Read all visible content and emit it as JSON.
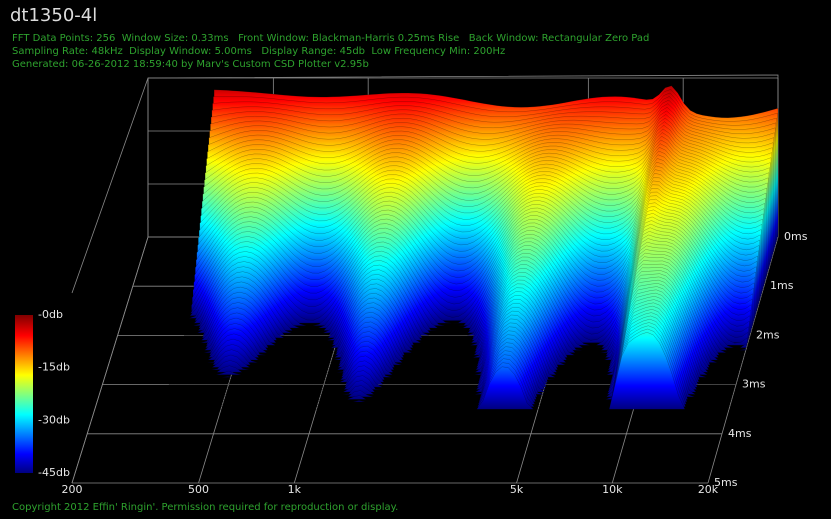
{
  "chart_data": {
    "type": "waterfall",
    "title": "dt1350-4l",
    "subtitle": [
      "FFT Data Points: 256  Window Size: 0.33ms   Front Window: Blackman-Harris 0.25ms Rise   Back Window: Rectangular Zero Pad",
      "Sampling Rate: 48kHz  Display Window: 5.00ms   Display Range: 45db  Low Frequency Min: 200Hz",
      "Generated: 06-26-2012 18:59:40 by Marv's Custom CSD Plotter v2.95b"
    ],
    "xlim": [
      200,
      20000
    ],
    "log_x": true,
    "xticks": [
      200,
      500,
      {
        "value": 1000,
        "label": "1k"
      },
      {
        "value": 5000,
        "label": "5k"
      },
      {
        "value": 10000,
        "label": "10k"
      },
      {
        "value": 20000,
        "label": "20k"
      }
    ],
    "ylim": [
      0,
      5
    ],
    "yticks": [
      {
        "value": 0,
        "label": "0ms"
      },
      {
        "value": 1,
        "label": "1ms"
      },
      {
        "value": 2,
        "label": "2ms"
      },
      {
        "value": 3,
        "label": "3ms"
      },
      {
        "value": 4,
        "label": "4ms"
      },
      {
        "value": 5,
        "label": "5ms"
      }
    ],
    "zlim": [
      -45,
      0
    ],
    "zticks": [
      {
        "value": 0,
        "label": "-0db"
      },
      {
        "value": -15,
        "label": "-15db"
      },
      {
        "value": -30,
        "label": "-30db"
      },
      {
        "value": -45,
        "label": "-45db"
      }
    ],
    "grid": true,
    "footer": "Copyright 2012 Effin' Ringin'. Permission required for reproduction or display."
  }
}
